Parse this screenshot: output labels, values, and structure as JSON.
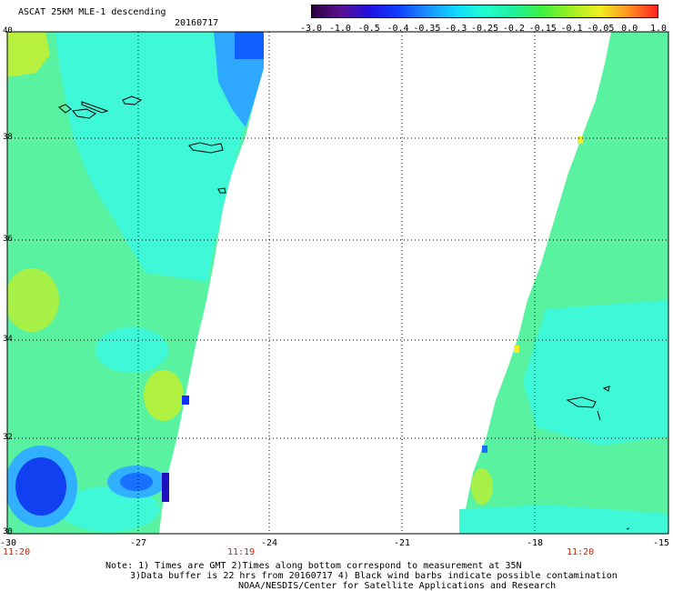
{
  "header": {
    "title": "ASCAT 25KM MLE-1 descending",
    "date": "20160717"
  },
  "colorbar": {
    "tick_labels": [
      "-3.0",
      "-1.0",
      "-0.5",
      "-0.4",
      "-0.35",
      "-0.3",
      "-0.25",
      "-0.2",
      "-0.15",
      "-0.1",
      "-0.05",
      "0.0",
      "1.0"
    ],
    "colors": [
      "#2a0040",
      "#5a1090",
      "#2010e0",
      "#1040ff",
      "#1a90ff",
      "#10d8ff",
      "#20ffd0",
      "#20f0a0",
      "#40f040",
      "#a0f020",
      "#f0f020",
      "#ff9020",
      "#ff2020"
    ]
  },
  "axes": {
    "lat_labels": [
      "40",
      "38",
      "36",
      "34",
      "32",
      "30"
    ],
    "lon_labels": [
      "-30",
      "-27",
      "-24",
      "-21",
      "-18",
      "-15"
    ],
    "time_labels": [
      "11:20",
      "11:19",
      "11:20"
    ],
    "time_color": "#cc2200"
  },
  "notes": {
    "line1": "Note: 1) Times are GMT 2)Times along bottom correspond to measurement at 35N",
    "line2": "3)Data buffer is 22 hrs from 20160717 4) Black wind barbs indicate possible contamination",
    "line3": "NOAA/NESDIS/Center for Satellite Applications and Research"
  }
}
